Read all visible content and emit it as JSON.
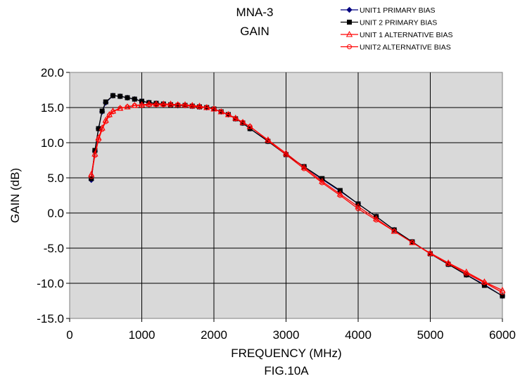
{
  "chart_data": {
    "type": "line",
    "title": "MNA-3",
    "subtitle": "GAIN",
    "xlabel": "FREQUENCY (MHz)",
    "ylabel": "GAIN (dB)",
    "caption": "FIG.10A",
    "xlim": [
      0,
      6000
    ],
    "ylim": [
      -15,
      20
    ],
    "x_ticks": [
      0,
      1000,
      2000,
      3000,
      4000,
      5000,
      6000
    ],
    "x_tick_labels": [
      "0",
      "1000",
      "2000",
      "3000",
      "4000",
      "5000",
      "6000"
    ],
    "y_ticks": [
      -15,
      -10,
      -5,
      0,
      5,
      10,
      15,
      20
    ],
    "y_tick_labels": [
      "-15.0",
      "-10.0",
      "-5.0",
      "0.0",
      "5.0",
      "10.0",
      "15.0",
      "20.0"
    ],
    "grid": true,
    "legend_position": "top-right",
    "plot_background": "#d9d9d9",
    "series": [
      {
        "name": "UNIT1 PRIMARY BIAS",
        "color": "#000080",
        "marker": "diamond",
        "x": [
          300,
          350,
          400,
          450,
          500,
          600,
          700,
          800,
          900,
          1000,
          1100,
          1200,
          1300,
          1400,
          1500,
          1600,
          1700,
          1800,
          1900,
          2000,
          2100,
          2200,
          2300,
          2400,
          2500,
          2750,
          3000,
          3250,
          3500,
          3750,
          4000,
          4250,
          4500,
          4750,
          5000,
          5250,
          5500,
          5750,
          6000
        ],
        "y": [
          4.7,
          8.8,
          12.0,
          14.4,
          15.7,
          16.7,
          16.6,
          16.4,
          16.2,
          15.9,
          15.7,
          15.6,
          15.5,
          15.4,
          15.3,
          15.3,
          15.2,
          15.1,
          15.0,
          14.8,
          14.4,
          14.0,
          13.4,
          12.8,
          12.0,
          10.2,
          8.3,
          6.6,
          4.8,
          3.1,
          1.3,
          -0.5,
          -2.4,
          -4.1,
          -5.8,
          -7.3,
          -8.8,
          -10.2,
          -11.8
        ]
      },
      {
        "name": "UNIT 2 PRIMARY BIAS",
        "color": "#000000",
        "marker": "square",
        "x": [
          300,
          350,
          400,
          450,
          500,
          600,
          700,
          800,
          900,
          1000,
          1100,
          1200,
          1300,
          1400,
          1500,
          1600,
          1700,
          1800,
          1900,
          2000,
          2100,
          2200,
          2300,
          2400,
          2500,
          2750,
          3000,
          3250,
          3500,
          3750,
          4000,
          4250,
          4500,
          4750,
          5000,
          5250,
          5500,
          5750,
          6000
        ],
        "y": [
          4.9,
          8.9,
          12.0,
          14.5,
          15.8,
          16.7,
          16.6,
          16.4,
          16.2,
          15.9,
          15.7,
          15.6,
          15.5,
          15.4,
          15.3,
          15.3,
          15.2,
          15.1,
          15.0,
          14.8,
          14.4,
          14.0,
          13.4,
          12.8,
          12.0,
          10.2,
          8.3,
          6.6,
          4.9,
          3.2,
          1.3,
          -0.5,
          -2.4,
          -4.1,
          -5.8,
          -7.3,
          -8.8,
          -10.3,
          -11.8
        ]
      },
      {
        "name": "UNIT 1 ALTERNATIVE BIAS",
        "color": "#ff0000",
        "marker": "triangle",
        "x": [
          300,
          350,
          400,
          450,
          500,
          550,
          600,
          700,
          800,
          900,
          1000,
          1100,
          1200,
          1300,
          1400,
          1500,
          1600,
          1700,
          1800,
          1900,
          2000,
          2100,
          2200,
          2300,
          2400,
          2500,
          2750,
          3000,
          3250,
          3500,
          3750,
          4000,
          4250,
          4500,
          4750,
          5000,
          5250,
          5500,
          5750,
          6000
        ],
        "y": [
          5.5,
          8.4,
          10.7,
          12.1,
          13.2,
          14.0,
          14.5,
          14.9,
          15.1,
          15.3,
          15.4,
          15.5,
          15.5,
          15.5,
          15.5,
          15.4,
          15.4,
          15.3,
          15.2,
          15.0,
          14.8,
          14.4,
          14.0,
          13.5,
          12.9,
          12.3,
          10.4,
          8.5,
          6.5,
          4.5,
          2.7,
          0.9,
          -0.8,
          -2.6,
          -4.2,
          -5.7,
          -7.1,
          -8.4,
          -9.8,
          -11.0
        ]
      },
      {
        "name": "UNIT2 ALTERNATIVE BIAS",
        "color": "#ff0000",
        "marker": "circle",
        "x": [
          300,
          350,
          400,
          450,
          500,
          550,
          600,
          700,
          800,
          900,
          1000,
          1100,
          1200,
          1300,
          1400,
          1500,
          1600,
          1700,
          1800,
          1900,
          2000,
          2100,
          2200,
          2300,
          2400,
          2500,
          2750,
          3000,
          3250,
          3500,
          3750,
          4000,
          4250,
          4500,
          4750,
          5000,
          5250,
          5500,
          5750,
          6000
        ],
        "y": [
          5.2,
          8.2,
          10.4,
          11.9,
          13.0,
          13.9,
          14.4,
          14.9,
          15.1,
          15.3,
          15.3,
          15.4,
          15.4,
          15.4,
          15.4,
          15.4,
          15.3,
          15.2,
          15.1,
          15.0,
          14.8,
          14.4,
          14.0,
          13.4,
          12.9,
          12.3,
          10.3,
          8.3,
          6.3,
          4.3,
          2.5,
          0.6,
          -1.0,
          -2.6,
          -4.2,
          -5.8,
          -7.2,
          -8.6,
          -9.9,
          -11.3
        ]
      }
    ]
  }
}
